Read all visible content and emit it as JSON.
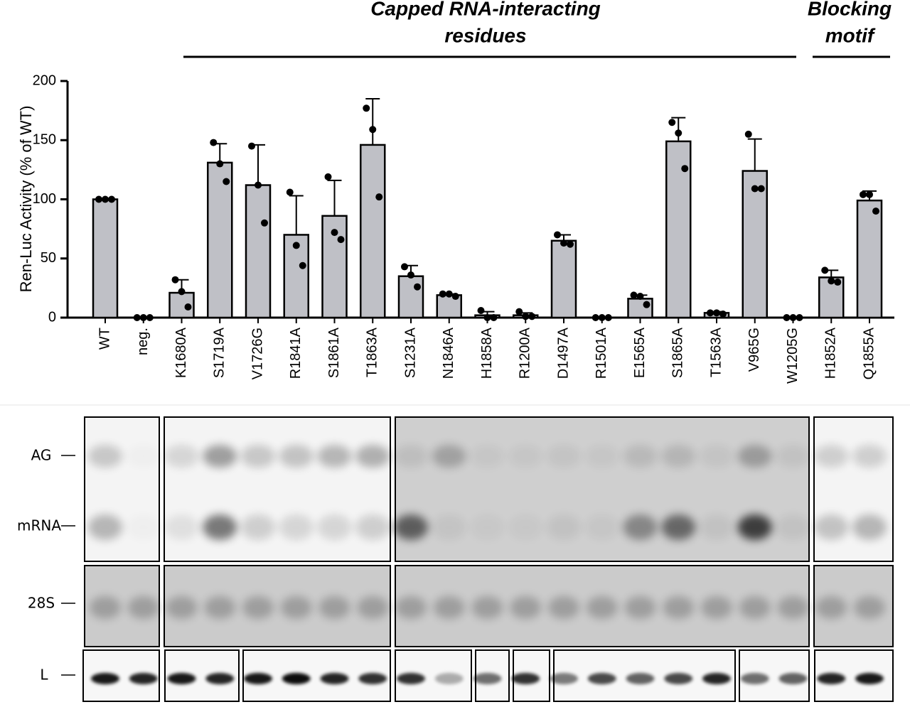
{
  "chart_data": {
    "type": "bar",
    "annotations": [
      {
        "lines": [
          "Capped RNA-interacting",
          "residues"
        ]
      },
      {
        "lines": [
          "Blocking",
          "motif"
        ]
      }
    ],
    "ylabel": "Ren-Luc Activity (% of WT)",
    "categories": [
      "WT",
      "neg.",
      "K1680A",
      "S1719A",
      "V1726G",
      "R1841A",
      "S1861A",
      "T1863A",
      "S1231A",
      "N1846A",
      "H1858A",
      "R1200A",
      "D1497A",
      "R1501A",
      "E1565A",
      "S1865A",
      "T1563A",
      "V965G",
      "W1205G",
      "H1852A",
      "Q1855A"
    ],
    "values": [
      100,
      0,
      21,
      131,
      112,
      70,
      86,
      146,
      35,
      19,
      2,
      2,
      65,
      0,
      16,
      149,
      4,
      124,
      0,
      34,
      99
    ],
    "errors": [
      0,
      0,
      11,
      16,
      34,
      33,
      30,
      39,
      9,
      1,
      3,
      2,
      5,
      0,
      3,
      20,
      1,
      27,
      0,
      6,
      8
    ],
    "points": [
      [
        100,
        100,
        100
      ],
      [
        0,
        0,
        0
      ],
      [
        32,
        22,
        9
      ],
      [
        148,
        130,
        115
      ],
      [
        145,
        112,
        80
      ],
      [
        106,
        61,
        44
      ],
      [
        119,
        72,
        66
      ],
      [
        177,
        159,
        102
      ],
      [
        43,
        36,
        26
      ],
      [
        20,
        20,
        18
      ],
      [
        6,
        0,
        0
      ],
      [
        5,
        1,
        1
      ],
      [
        70,
        63,
        62
      ],
      [
        0,
        0,
        0
      ],
      [
        19,
        18,
        11
      ],
      [
        165,
        156,
        126
      ],
      [
        4,
        4,
        3
      ],
      [
        155,
        109,
        109
      ],
      [
        0,
        0,
        0
      ],
      [
        40,
        31,
        30
      ],
      [
        104,
        104,
        90
      ]
    ],
    "color": "#bfc0c6",
    "ylim": [
      0,
      200
    ],
    "yticks": [
      0,
      50,
      100,
      150,
      200
    ]
  },
  "blot": {
    "labels": [
      "AG",
      "mRNA",
      "28S",
      "L"
    ]
  }
}
